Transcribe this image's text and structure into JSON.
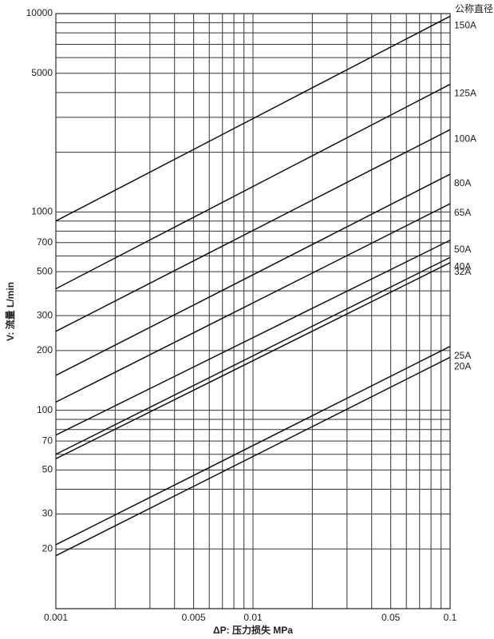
{
  "chart_data": {
    "type": "line",
    "log_x": true,
    "log_y": true,
    "x_label": "ΔP: 压力损失 MPa",
    "y_label": "V: 流量 L/min",
    "legend_title": "公称直径",
    "x": [
      0.001,
      0.1
    ],
    "xlim": [
      0.001,
      0.1
    ],
    "ylim": [
      10,
      10000
    ],
    "xticks": [
      0.001,
      0.005,
      0.01,
      0.05,
      0.1
    ],
    "yticks": [
      20,
      30,
      50,
      70,
      100,
      200,
      300,
      500,
      700,
      1000,
      5000,
      10000
    ],
    "xgrid": [
      0.002,
      0.003,
      0.004,
      0.006,
      0.007,
      0.008,
      0.009,
      0.02,
      0.03,
      0.04,
      0.06,
      0.07,
      0.08,
      0.09
    ],
    "ygrid": [
      40,
      60,
      80,
      90,
      400,
      600,
      800,
      900,
      2000,
      3000,
      4000,
      6000,
      7000,
      8000,
      9000
    ],
    "series": [
      {
        "name": "150A",
        "color": "#111111",
        "values": [
          900,
          9700
        ]
      },
      {
        "name": "125A",
        "color": "#111111",
        "values": [
          410,
          4400
        ]
      },
      {
        "name": "100A",
        "color": "#111111",
        "values": [
          250,
          2600
        ]
      },
      {
        "name": "80A",
        "color": "#111111",
        "values": [
          150,
          1550
        ]
      },
      {
        "name": "65A",
        "color": "#111111",
        "values": [
          110,
          1100
        ]
      },
      {
        "name": "50A",
        "color": "#111111",
        "values": [
          75,
          720
        ]
      },
      {
        "name": "40A",
        "color": "#111111",
        "values": [
          60,
          590
        ]
      },
      {
        "name": "32A",
        "color": "#111111",
        "values": [
          57,
          555
        ]
      },
      {
        "name": "25A",
        "color": "#111111",
        "values": [
          21,
          210
        ]
      },
      {
        "name": "20A",
        "color": "#111111",
        "values": [
          18.5,
          185
        ]
      }
    ]
  }
}
